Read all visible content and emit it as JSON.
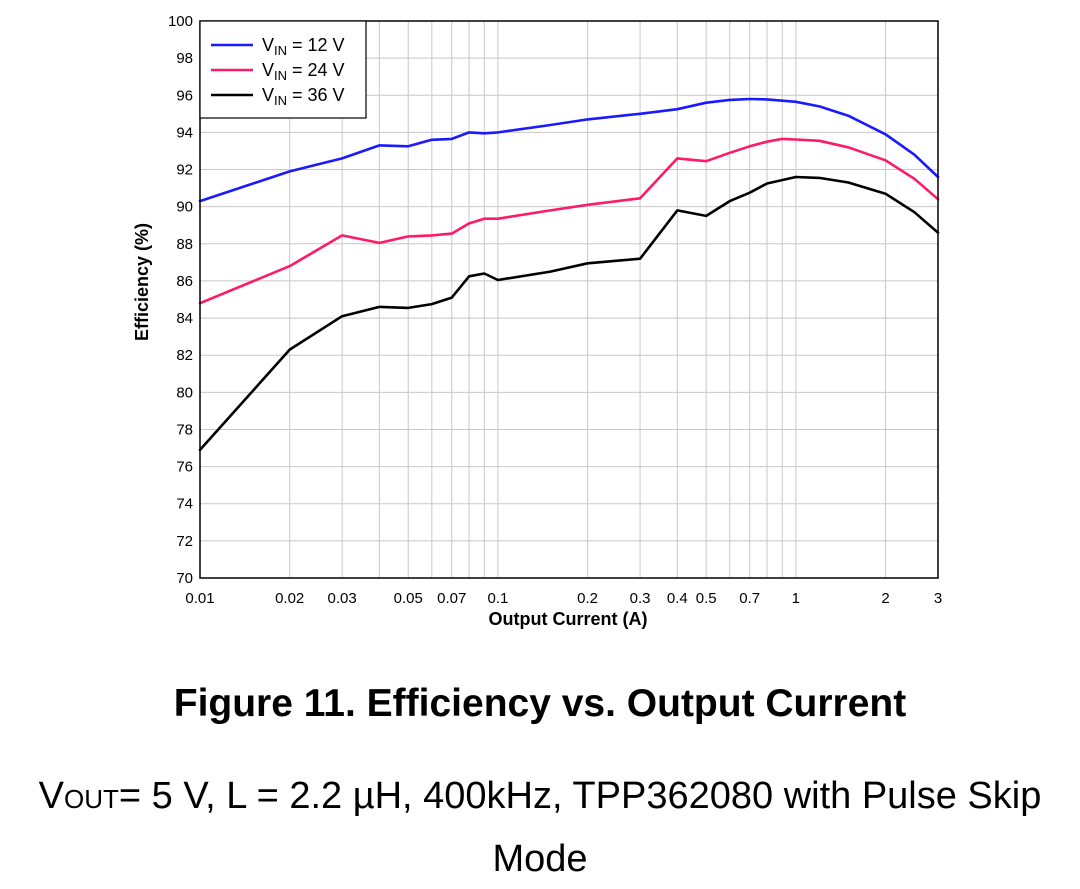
{
  "chart_data": {
    "type": "line",
    "xlabel": "Output Current (A)",
    "ylabel": "Efficiency (%)",
    "x_scale": "log",
    "xlim": [
      0.01,
      3
    ],
    "ylim": [
      70,
      100
    ],
    "grid": true,
    "legend_position": "top-left",
    "x_ticks": [
      0.01,
      0.02,
      0.03,
      0.05,
      0.07,
      0.1,
      0.2,
      0.3,
      0.4,
      0.5,
      0.7,
      1,
      2,
      3
    ],
    "x_tick_labels": [
      "0.01",
      "0.02",
      "0.03",
      "0.05",
      "0.07",
      "0.1",
      "0.2",
      "0.3",
      "0.4",
      "0.5",
      "0.7",
      "1",
      "2",
      "3"
    ],
    "y_ticks": [
      70,
      72,
      74,
      76,
      78,
      80,
      82,
      84,
      86,
      88,
      90,
      92,
      94,
      96,
      98,
      100
    ],
    "series": [
      {
        "name": "VIN = 12 V",
        "legend": {
          "prefix": "V",
          "sub": "IN",
          "suffix": " = 12 V"
        },
        "color": "#1a1aff",
        "points": [
          [
            0.01,
            90.3
          ],
          [
            0.02,
            91.9
          ],
          [
            0.03,
            92.6
          ],
          [
            0.04,
            93.3
          ],
          [
            0.05,
            93.25
          ],
          [
            0.06,
            93.6
          ],
          [
            0.07,
            93.65
          ],
          [
            0.08,
            94.0
          ],
          [
            0.09,
            93.95
          ],
          [
            0.1,
            94.0
          ],
          [
            0.15,
            94.4
          ],
          [
            0.2,
            94.7
          ],
          [
            0.3,
            95.0
          ],
          [
            0.4,
            95.25
          ],
          [
            0.5,
            95.6
          ],
          [
            0.6,
            95.75
          ],
          [
            0.7,
            95.8
          ],
          [
            0.8,
            95.78
          ],
          [
            1.0,
            95.65
          ],
          [
            1.2,
            95.4
          ],
          [
            1.5,
            94.9
          ],
          [
            2.0,
            93.9
          ],
          [
            2.5,
            92.8
          ],
          [
            3.0,
            91.6
          ]
        ]
      },
      {
        "name": "VIN = 24 V",
        "legend": {
          "prefix": "V",
          "sub": "IN",
          "suffix": " = 24 V"
        },
        "color": "#ff1a66",
        "points": [
          [
            0.01,
            84.8
          ],
          [
            0.02,
            86.8
          ],
          [
            0.03,
            88.45
          ],
          [
            0.04,
            88.05
          ],
          [
            0.05,
            88.4
          ],
          [
            0.06,
            88.45
          ],
          [
            0.07,
            88.55
          ],
          [
            0.08,
            89.1
          ],
          [
            0.09,
            89.35
          ],
          [
            0.1,
            89.35
          ],
          [
            0.15,
            89.8
          ],
          [
            0.2,
            90.1
          ],
          [
            0.3,
            90.45
          ],
          [
            0.4,
            92.6
          ],
          [
            0.5,
            92.45
          ],
          [
            0.6,
            92.9
          ],
          [
            0.7,
            93.25
          ],
          [
            0.8,
            93.5
          ],
          [
            0.9,
            93.65
          ],
          [
            1.0,
            93.62
          ],
          [
            1.2,
            93.55
          ],
          [
            1.5,
            93.2
          ],
          [
            2.0,
            92.5
          ],
          [
            2.5,
            91.5
          ],
          [
            3.0,
            90.4
          ]
        ]
      },
      {
        "name": "VIN = 36 V",
        "legend": {
          "prefix": "V",
          "sub": "IN",
          "suffix": " = 36 V"
        },
        "color": "#000000",
        "points": [
          [
            0.01,
            76.9
          ],
          [
            0.02,
            82.3
          ],
          [
            0.03,
            84.1
          ],
          [
            0.04,
            84.6
          ],
          [
            0.05,
            84.55
          ],
          [
            0.06,
            84.75
          ],
          [
            0.07,
            85.1
          ],
          [
            0.08,
            86.25
          ],
          [
            0.09,
            86.4
          ],
          [
            0.1,
            86.05
          ],
          [
            0.15,
            86.5
          ],
          [
            0.2,
            86.95
          ],
          [
            0.3,
            87.2
          ],
          [
            0.4,
            89.8
          ],
          [
            0.5,
            89.5
          ],
          [
            0.6,
            90.3
          ],
          [
            0.7,
            90.75
          ],
          [
            0.8,
            91.25
          ],
          [
            1.0,
            91.6
          ],
          [
            1.2,
            91.55
          ],
          [
            1.5,
            91.3
          ],
          [
            2.0,
            90.7
          ],
          [
            2.5,
            89.7
          ],
          [
            3.0,
            88.6
          ]
        ]
      }
    ]
  },
  "caption": {
    "title": "Figure 11. Efficiency vs. Output Current",
    "subtitle_prefix": "V",
    "subtitle_sub": "OUT",
    "subtitle_rest": "= 5 V, L = 2.2 µH, 400kHz, TPP362080 with Pulse Skip Mode"
  }
}
